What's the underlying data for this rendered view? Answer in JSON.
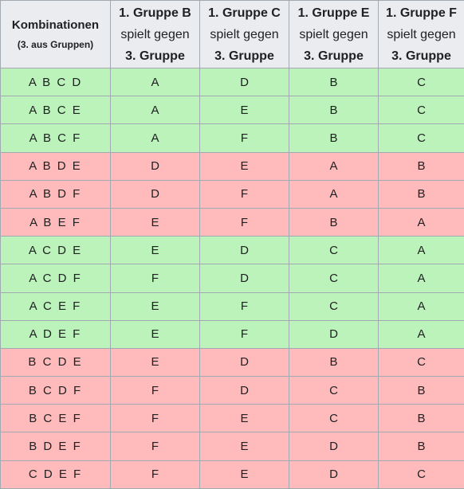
{
  "header": {
    "first": {
      "line1": "Kombinationen",
      "line2": "(3. aus Gruppen)"
    },
    "columns": [
      {
        "line1": "1. Gruppe B",
        "line2": "spielt gegen",
        "line3": "3. Gruppe"
      },
      {
        "line1": "1. Gruppe C",
        "line2": "spielt gegen",
        "line3": "3. Gruppe"
      },
      {
        "line1": "1. Gruppe E",
        "line2": "spielt gegen",
        "line3": "3. Gruppe"
      },
      {
        "line1": "1. Gruppe F",
        "line2": "spielt gegen",
        "line3": "3. Gruppe"
      }
    ]
  },
  "colors": {
    "green": "#bbf3bb",
    "red": "#ffbbbb",
    "header_bg": "#eaecf0",
    "border": "#a2a9b1"
  },
  "rows": [
    {
      "color": "green",
      "cells": [
        "A B C D",
        "A",
        "D",
        "B",
        "C"
      ]
    },
    {
      "color": "green",
      "cells": [
        "A B C E",
        "A",
        "E",
        "B",
        "C"
      ]
    },
    {
      "color": "green",
      "cells": [
        "A B C F",
        "A",
        "F",
        "B",
        "C"
      ]
    },
    {
      "color": "red",
      "cells": [
        "A B D E",
        "D",
        "E",
        "A",
        "B"
      ]
    },
    {
      "color": "red",
      "cells": [
        "A B D F",
        "D",
        "F",
        "A",
        "B"
      ]
    },
    {
      "color": "red",
      "cells": [
        "A B E F",
        "E",
        "F",
        "B",
        "A"
      ]
    },
    {
      "color": "green",
      "cells": [
        "A C D E",
        "E",
        "D",
        "C",
        "A"
      ]
    },
    {
      "color": "green",
      "cells": [
        "A C D F",
        "F",
        "D",
        "C",
        "A"
      ]
    },
    {
      "color": "green",
      "cells": [
        "A C E F",
        "E",
        "F",
        "C",
        "A"
      ]
    },
    {
      "color": "green",
      "cells": [
        "A D E F",
        "E",
        "F",
        "D",
        "A"
      ]
    },
    {
      "color": "red",
      "cells": [
        "B C D E",
        "E",
        "D",
        "B",
        "C"
      ]
    },
    {
      "color": "red",
      "cells": [
        "B C D F",
        "F",
        "D",
        "C",
        "B"
      ]
    },
    {
      "color": "red",
      "cells": [
        "B C E F",
        "F",
        "E",
        "C",
        "B"
      ]
    },
    {
      "color": "red",
      "cells": [
        "B D E F",
        "F",
        "E",
        "D",
        "B"
      ]
    },
    {
      "color": "red",
      "cells": [
        "C D E F",
        "F",
        "E",
        "D",
        "C"
      ]
    }
  ]
}
